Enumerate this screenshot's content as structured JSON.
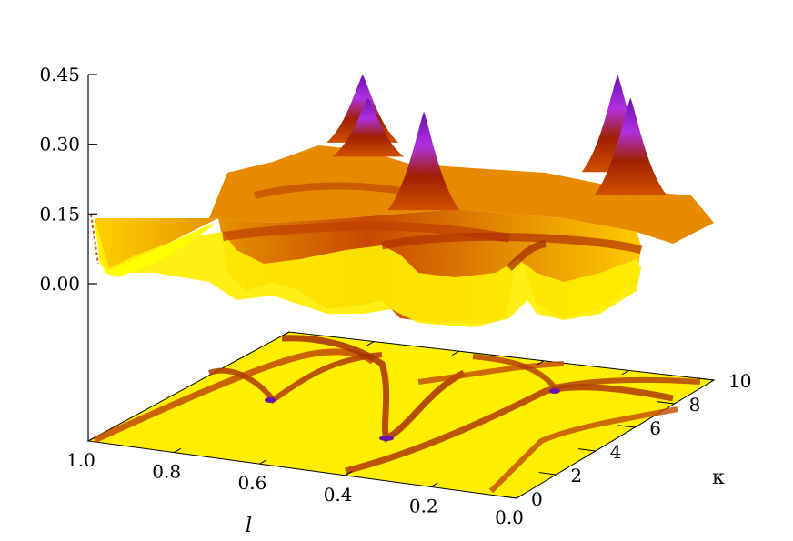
{
  "chart_data": {
    "type": "surface3d",
    "zaxis": {
      "ticks": [
        0.0,
        0.15,
        0.3,
        0.45
      ],
      "tick_labels": [
        "0.00",
        "0.15",
        "0.30",
        "0.45"
      ],
      "range": [
        0.0,
        0.45
      ]
    },
    "xaxis": {
      "label": "l",
      "ticks": [
        1.0,
        0.8,
        0.6,
        0.4,
        0.2,
        0.0
      ],
      "tick_labels": [
        "1.0",
        "0.8",
        "0.6",
        "0.4",
        "0.2",
        "0.0"
      ],
      "range": [
        0.0,
        1.0
      ]
    },
    "yaxis": {
      "label": "κ",
      "ticks": [
        0,
        2,
        4,
        6,
        8,
        10
      ],
      "tick_labels": [
        "0",
        "2",
        "4",
        "6",
        "8",
        "10"
      ],
      "range": [
        0,
        10
      ]
    },
    "peaks": [
      {
        "l": 0.78,
        "kappa": 9.0,
        "z": 0.45
      },
      {
        "l": 0.72,
        "kappa": 8.0,
        "z": 0.4
      },
      {
        "l": 0.43,
        "kappa": 4.6,
        "z": 0.37
      },
      {
        "l": 0.18,
        "kappa": 9.0,
        "z": 0.45
      },
      {
        "l": 0.08,
        "kappa": 7.5,
        "z": 0.4
      }
    ],
    "baseline_z": 0.0,
    "contour_projection": true,
    "colormap": [
      "#ffff00",
      "#ffb000",
      "#cc4400",
      "#8b0000",
      "#a020f0",
      "#3c0a6e"
    ]
  }
}
